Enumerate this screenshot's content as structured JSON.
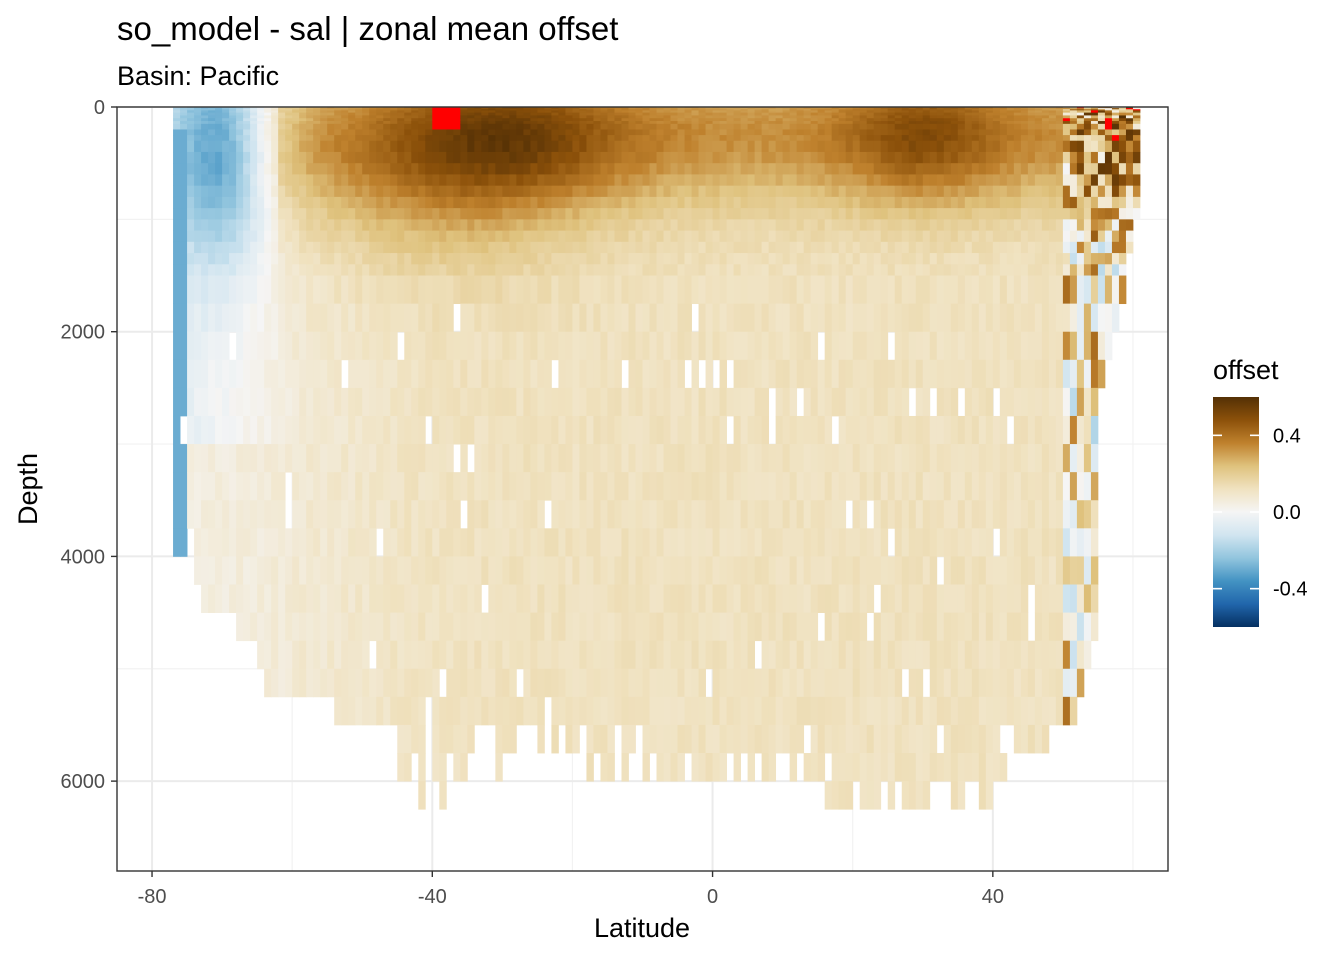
{
  "chart_data": {
    "type": "heatmap",
    "title": "so_model - sal  | zonal mean offset",
    "subtitle": "Basin: Pacific",
    "xlabel": "Latitude",
    "ylabel": "Depth",
    "xlim": [
      -85,
      65
    ],
    "ylim": [
      6800,
      0
    ],
    "x_ticks": [
      -80,
      -40,
      0,
      40
    ],
    "x_tick_labels": [
      "-80",
      "-40",
      "0",
      "40"
    ],
    "y_ticks": [
      0,
      2000,
      4000,
      6000
    ],
    "y_tick_labels": [
      "0",
      "2000",
      "4000",
      "6000"
    ],
    "grid": true,
    "legend": {
      "title": "offset",
      "placement": "right",
      "range": [
        -0.6,
        0.6
      ],
      "ticks": [
        0.4,
        0.0,
        -0.4
      ],
      "tick_labels": [
        "0.4",
        "0.0",
        "-0.4"
      ],
      "colors": [
        "#053061",
        "#2166ac",
        "#4393c3",
        "#92c5de",
        "#d1e5f0",
        "#f5f5f5",
        "#f0e2c0",
        "#dfc27d",
        "#bf812d",
        "#8c510a",
        "#543005"
      ],
      "out_of_range_color": "#ff0000"
    },
    "grid_resolution": {
      "dlat": 1.0,
      "depth_levels": [
        0,
        10,
        20,
        30,
        50,
        75,
        100,
        125,
        150,
        200,
        250,
        300,
        400,
        500,
        600,
        700,
        800,
        900,
        1000,
        1100,
        1200,
        1300,
        1400,
        1500,
        1750,
        2000,
        2250,
        2500,
        2750,
        3000,
        3250,
        3500,
        3750,
        4000,
        4250,
        4500,
        4750,
        5000,
        5250,
        5500,
        5750,
        6000,
        6250,
        6500,
        6750
      ]
    },
    "description_of_values": "offset = model minus observed salinity, zonal mean; positive (brown) dominates upper 1500 m with maxima ~0.4-0.6 near 40S-20S and 30N, saturated (>0.6) red cells near 38S surface and 55-60N; negative (blue) offsets ~-0.1 to -0.3 in Southern Ocean 75S-65S upper 1000 m and a strip near 76S; deep ocean mostly 0.05-0.2"
  }
}
